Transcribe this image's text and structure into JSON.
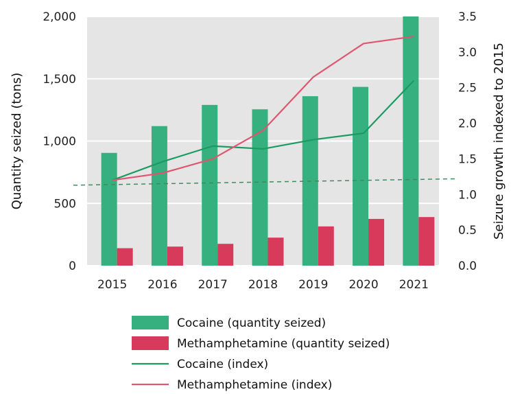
{
  "chart_data": {
    "type": "bar",
    "categories": [
      "2015",
      "2016",
      "2017",
      "2018",
      "2019",
      "2020",
      "2021"
    ],
    "series": [
      {
        "name": "Cocaine (quantity seized)",
        "kind": "bar",
        "axis": "left",
        "color": "#36b07f",
        "values": [
          905,
          1120,
          1290,
          1255,
          1360,
          1435,
          2000
        ]
      },
      {
        "name": "Methamphetamine (quantity seized)",
        "kind": "bar",
        "axis": "left",
        "color": "#d83a5b",
        "values": [
          140,
          153,
          175,
          225,
          315,
          375,
          390
        ]
      },
      {
        "name": "Cocaine (index)",
        "kind": "line",
        "axis": "right",
        "color": "#1a9b62",
        "values": [
          1.2,
          1.46,
          1.68,
          1.64,
          1.77,
          1.86,
          2.6
        ]
      },
      {
        "name": "Methamphetamine (index)",
        "kind": "line",
        "axis": "right",
        "color": "#e0556f",
        "values": [
          1.2,
          1.3,
          1.5,
          1.9,
          2.65,
          3.12,
          3.22
        ]
      }
    ],
    "reference_line": {
      "axis": "right",
      "value": 1.2,
      "style": "dashed",
      "color": "#3f8b5c"
    },
    "ylabel": "Quantity seized (tons)",
    "y2label": "Seizure growth indexed to 2015",
    "ylim": [
      0,
      2000
    ],
    "y2lim": [
      0,
      3.5
    ],
    "yticks": [
      "0",
      "500",
      "1,000",
      "1,500",
      "2,000"
    ],
    "y2ticks": [
      "0.0",
      "0.5",
      "1.0",
      "1.5",
      "2.0",
      "2.5",
      "3.0",
      "3.5"
    ],
    "grid": true,
    "legend_position": "bottom",
    "background": "#e5e5e5"
  }
}
